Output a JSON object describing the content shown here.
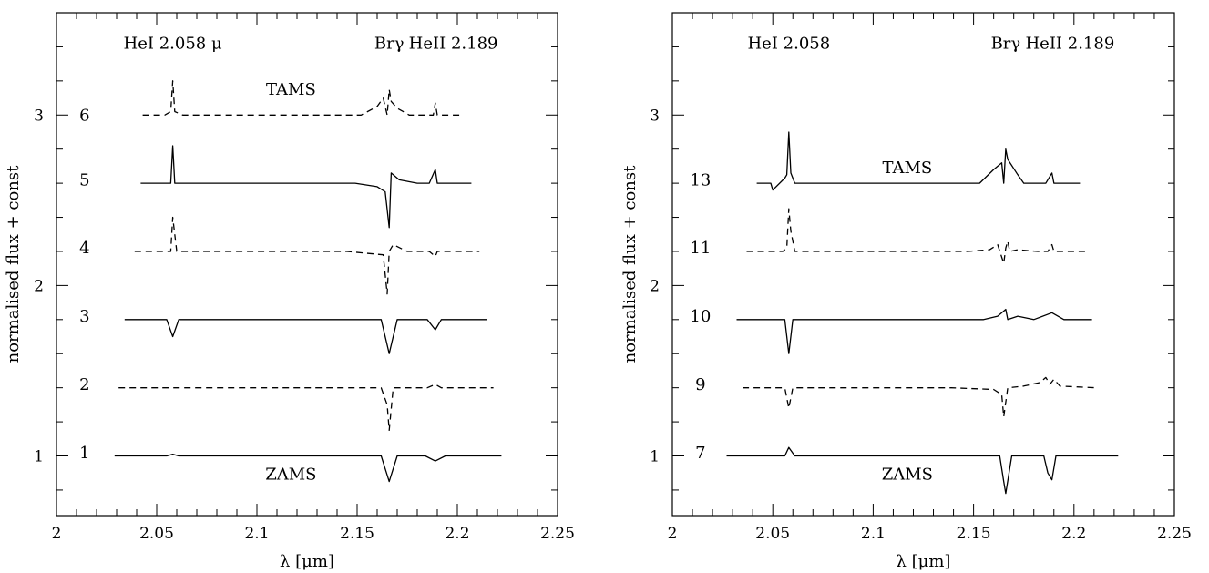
{
  "chart_data": [
    {
      "type": "line",
      "xlabel": "λ  [μm]",
      "ylabel": "normalised flux + const",
      "xlim": [
        2.0,
        2.25
      ],
      "ylim": [
        0.65,
        3.6
      ],
      "xticks": [
        2.0,
        2.05,
        2.1,
        2.15,
        2.2,
        2.25
      ],
      "xtick_labels": [
        "2",
        "2.05",
        "2.1",
        "2.15",
        "2.2",
        "2.25"
      ],
      "yticks": [
        1,
        2,
        3
      ],
      "ytick_labels": [
        "1",
        "2",
        "3"
      ],
      "annotations": [
        {
          "text": "HeI 2.058 μ",
          "x": 2.058,
          "y": 3.39
        },
        {
          "text": "Brγ",
          "x": 2.166,
          "y": 3.39
        },
        {
          "text": "HeII 2.189",
          "x": 2.198,
          "y": 3.39
        },
        {
          "text": "TAMS",
          "x": 2.117,
          "y": 3.12
        },
        {
          "text": "ZAMS",
          "x": 2.117,
          "y": 0.86
        }
      ],
      "series": [
        {
          "name": "1",
          "dashed": false,
          "x": [
            2.029,
            2.055,
            2.058,
            2.061,
            2.089,
            2.135,
            2.162,
            2.166,
            2.17,
            2.184,
            2.189,
            2.194,
            2.222
          ],
          "y": [
            1.0,
            1.0,
            1.01,
            1.0,
            1.0,
            1.0,
            1.0,
            0.85,
            1.0,
            1.0,
            0.97,
            1.0,
            1.0
          ]
        },
        {
          "name": "2",
          "dashed": true,
          "x": [
            2.031,
            2.082,
            2.138,
            2.162,
            2.165,
            2.166,
            2.168,
            2.185,
            2.189,
            2.192,
            2.218
          ],
          "y": [
            1.4,
            1.4,
            1.4,
            1.4,
            1.3,
            1.15,
            1.4,
            1.4,
            1.42,
            1.4,
            1.4
          ]
        },
        {
          "name": "3",
          "dashed": false,
          "x": [
            2.034,
            2.055,
            2.058,
            2.061,
            2.083,
            2.141,
            2.162,
            2.166,
            2.17,
            2.185,
            2.189,
            2.192,
            2.215
          ],
          "y": [
            1.8,
            1.8,
            1.7,
            1.8,
            1.8,
            1.8,
            1.8,
            1.6,
            1.8,
            1.8,
            1.74,
            1.8,
            1.8
          ]
        },
        {
          "name": "4",
          "dashed": true,
          "x": [
            2.039,
            2.057,
            2.058,
            2.06,
            2.079,
            2.145,
            2.163,
            2.165,
            2.166,
            2.168,
            2.175,
            2.186,
            2.189,
            2.19,
            2.211
          ],
          "y": [
            2.2,
            2.2,
            2.4,
            2.2,
            2.2,
            2.2,
            2.18,
            1.95,
            2.2,
            2.24,
            2.2,
            2.2,
            2.17,
            2.2,
            2.2
          ]
        },
        {
          "name": "5",
          "dashed": false,
          "x": [
            2.042,
            2.057,
            2.058,
            2.059,
            2.073,
            2.149,
            2.16,
            2.164,
            2.166,
            2.167,
            2.171,
            2.18,
            2.186,
            2.189,
            2.19,
            2.207
          ],
          "y": [
            2.6,
            2.6,
            2.82,
            2.6,
            2.6,
            2.6,
            2.58,
            2.55,
            2.34,
            2.66,
            2.62,
            2.6,
            2.6,
            2.68,
            2.6,
            2.6
          ]
        },
        {
          "name": "6",
          "dashed": true,
          "x": [
            2.043,
            2.054,
            2.057,
            2.058,
            2.059,
            2.063,
            2.069,
            2.152,
            2.16,
            2.163,
            2.165,
            2.166,
            2.167,
            2.17,
            2.176,
            2.188,
            2.189,
            2.19,
            2.203
          ],
          "y": [
            3.0,
            3.0,
            3.02,
            3.2,
            3.02,
            3.0,
            3.0,
            3.0,
            3.05,
            3.1,
            3.0,
            3.15,
            3.08,
            3.04,
            3.0,
            3.0,
            3.07,
            3.0,
            3.0
          ]
        }
      ],
      "series_labels": [
        {
          "text": "1",
          "x": 2.014,
          "y": 1.02
        },
        {
          "text": "2",
          "x": 2.014,
          "y": 1.42
        },
        {
          "text": "3",
          "x": 2.014,
          "y": 1.82
        },
        {
          "text": "4",
          "x": 2.014,
          "y": 2.22
        },
        {
          "text": "5",
          "x": 2.014,
          "y": 2.62
        },
        {
          "text": "6",
          "x": 2.014,
          "y": 3.0
        }
      ]
    },
    {
      "type": "line",
      "xlabel": "λ  [μm]",
      "ylabel": "normalised flux + const",
      "xlim": [
        2.0,
        2.25
      ],
      "ylim": [
        0.65,
        3.6
      ],
      "xticks": [
        2.0,
        2.05,
        2.1,
        2.15,
        2.2,
        2.25
      ],
      "xtick_labels": [
        "2",
        "2.05",
        "2.1",
        "2.15",
        "2.2",
        "2.25"
      ],
      "yticks": [
        1,
        2,
        3
      ],
      "ytick_labels": [
        "1",
        "2",
        "3"
      ],
      "annotations": [
        {
          "text": "HeI 2.058",
          "x": 2.058,
          "y": 3.39
        },
        {
          "text": "Brγ",
          "x": 2.166,
          "y": 3.39
        },
        {
          "text": "HeII 2.189",
          "x": 2.198,
          "y": 3.39
        },
        {
          "text": "TAMS",
          "x": 2.117,
          "y": 2.66
        },
        {
          "text": "ZAMS",
          "x": 2.117,
          "y": 0.86
        }
      ],
      "series": [
        {
          "name": "7",
          "dashed": false,
          "x": [
            2.027,
            2.056,
            2.058,
            2.061,
            2.09,
            2.133,
            2.163,
            2.165,
            2.166,
            2.169,
            2.185,
            2.187,
            2.189,
            2.191,
            2.222
          ],
          "y": [
            1.0,
            1.0,
            1.05,
            1.0,
            1.0,
            1.0,
            1.0,
            0.85,
            0.78,
            1.0,
            1.0,
            0.9,
            0.86,
            1.0,
            1.0
          ]
        },
        {
          "name": "9",
          "dashed": true,
          "x": [
            2.035,
            2.056,
            2.058,
            2.06,
            2.081,
            2.139,
            2.16,
            2.164,
            2.165,
            2.167,
            2.175,
            2.183,
            2.186,
            2.188,
            2.19,
            2.193,
            2.211
          ],
          "y": [
            1.4,
            1.4,
            1.28,
            1.4,
            1.4,
            1.4,
            1.39,
            1.36,
            1.23,
            1.4,
            1.41,
            1.43,
            1.46,
            1.42,
            1.45,
            1.41,
            1.4
          ]
        },
        {
          "name": "10",
          "dashed": false,
          "x": [
            2.032,
            2.056,
            2.058,
            2.06,
            2.079,
            2.143,
            2.155,
            2.162,
            2.166,
            2.167,
            2.172,
            2.18,
            2.189,
            2.195,
            2.209
          ],
          "y": [
            1.8,
            1.8,
            1.6,
            1.8,
            1.8,
            1.8,
            1.8,
            1.82,
            1.86,
            1.8,
            1.82,
            1.8,
            1.84,
            1.8,
            1.8
          ]
        },
        {
          "name": "11",
          "dashed": true,
          "x": [
            2.037,
            2.055,
            2.057,
            2.058,
            2.059,
            2.061,
            2.072,
            2.147,
            2.158,
            2.162,
            2.165,
            2.166,
            2.167,
            2.168,
            2.172,
            2.182,
            2.187,
            2.189,
            2.19,
            2.207
          ],
          "y": [
            2.2,
            2.2,
            2.22,
            2.45,
            2.32,
            2.2,
            2.2,
            2.2,
            2.21,
            2.24,
            2.13,
            2.22,
            2.26,
            2.2,
            2.21,
            2.2,
            2.2,
            2.24,
            2.2,
            2.2
          ]
        },
        {
          "name": "13",
          "dashed": false,
          "x": [
            2.042,
            2.049,
            2.05,
            2.056,
            2.057,
            2.058,
            2.059,
            2.061,
            2.072,
            2.153,
            2.16,
            2.164,
            2.165,
            2.166,
            2.167,
            2.172,
            2.175,
            2.186,
            2.189,
            2.19,
            2.203
          ],
          "y": [
            2.6,
            2.6,
            2.56,
            2.63,
            2.65,
            2.9,
            2.66,
            2.6,
            2.6,
            2.6,
            2.68,
            2.72,
            2.6,
            2.8,
            2.74,
            2.65,
            2.6,
            2.6,
            2.66,
            2.6,
            2.6
          ]
        }
      ],
      "series_labels": [
        {
          "text": "7",
          "x": 2.014,
          "y": 1.02
        },
        {
          "text": "9",
          "x": 2.014,
          "y": 1.42
        },
        {
          "text": "10",
          "x": 2.014,
          "y": 1.82
        },
        {
          "text": "11",
          "x": 2.014,
          "y": 2.22
        },
        {
          "text": "13",
          "x": 2.014,
          "y": 2.62
        }
      ]
    }
  ]
}
